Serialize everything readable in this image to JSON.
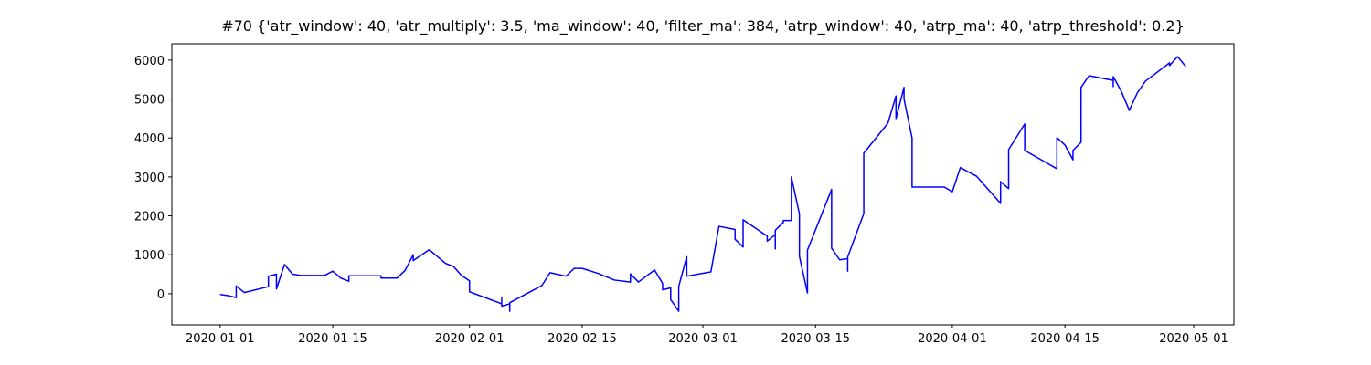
{
  "chart_data": {
    "type": "line",
    "title": "#70 {'atr_window': 40, 'atr_multiply': 3.5, 'ma_window': 40, 'filter_ma': 384, 'atrp_window': 40, 'atrp_ma': 40, 'atrp_threshold': 0.2}",
    "color": "#0000ff",
    "x": [
      "2020-01-01",
      "2020-01-02",
      "2020-01-03",
      "2020-01-03",
      "2020-01-04",
      "2020-01-07",
      "2020-01-07",
      "2020-01-08",
      "2020-01-08",
      "2020-01-09",
      "2020-01-10",
      "2020-01-11",
      "2020-01-14",
      "2020-01-15",
      "2020-01-16",
      "2020-01-17",
      "2020-01-17",
      "2020-01-21",
      "2020-01-21",
      "2020-01-23",
      "2020-01-24",
      "2020-01-25",
      "2020-01-25",
      "2020-01-27",
      "2020-01-29",
      "2020-01-30",
      "2020-01-31",
      "2020-02-01",
      "2020-02-01",
      "2020-02-05",
      "2020-02-05",
      "2020-02-05",
      "2020-02-06",
      "2020-02-06",
      "2020-02-06",
      "2020-02-10",
      "2020-02-11",
      "2020-02-13",
      "2020-02-14",
      "2020-02-15",
      "2020-02-17",
      "2020-02-19",
      "2020-02-21",
      "2020-02-21",
      "2020-02-22",
      "2020-02-24",
      "2020-02-25",
      "2020-02-25",
      "2020-02-26",
      "2020-02-26",
      "2020-02-27",
      "2020-02-27",
      "2020-02-27",
      "2020-02-28",
      "2020-02-28",
      "2020-03-02",
      "2020-03-03",
      "2020-03-05",
      "2020-03-05",
      "2020-03-06",
      "2020-03-06",
      "2020-03-09",
      "2020-03-09",
      "2020-03-10",
      "2020-03-10",
      "2020-03-10",
      "2020-03-11",
      "2020-03-11",
      "2020-03-12",
      "2020-03-12",
      "2020-03-13",
      "2020-03-13",
      "2020-03-14",
      "2020-03-14",
      "2020-03-17",
      "2020-03-17",
      "2020-03-18",
      "2020-03-19",
      "2020-03-19",
      "2020-03-19",
      "2020-03-21",
      "2020-03-21",
      "2020-03-24",
      "2020-03-25",
      "2020-03-25",
      "2020-03-26",
      "2020-03-26",
      "2020-03-27",
      "2020-03-27",
      "2020-03-31",
      "2020-04-01",
      "2020-04-02",
      "2020-04-04",
      "2020-04-07",
      "2020-04-07",
      "2020-04-08",
      "2020-04-08",
      "2020-04-08",
      "2020-04-10",
      "2020-04-10",
      "2020-04-14",
      "2020-04-14",
      "2020-04-14",
      "2020-04-15",
      "2020-04-16",
      "2020-04-16",
      "2020-04-17",
      "2020-04-17",
      "2020-04-17",
      "2020-04-18",
      "2020-04-21",
      "2020-04-21",
      "2020-04-21",
      "2020-04-22",
      "2020-04-23",
      "2020-04-24",
      "2020-04-25",
      "2020-04-28",
      "2020-04-28",
      "2020-04-29",
      "2020-04-30"
    ],
    "values": [
      -20,
      -50,
      -100,
      200,
      30,
      180,
      450,
      500,
      120,
      750,
      500,
      470,
      470,
      580,
      400,
      320,
      460,
      460,
      400,
      400,
      600,
      1000,
      850,
      1130,
      780,
      700,
      470,
      330,
      50,
      -260,
      -100,
      -320,
      -260,
      -450,
      -230,
      210,
      540,
      450,
      650,
      650,
      520,
      350,
      300,
      510,
      300,
      610,
      260,
      100,
      150,
      -150,
      -450,
      70,
      190,
      950,
      450,
      560,
      1730,
      1650,
      1400,
      1200,
      1900,
      1480,
      1350,
      1520,
      1150,
      1630,
      1830,
      1880,
      1880,
      3000,
      2050,
      960,
      20,
      1120,
      2680,
      1170,
      870,
      900,
      580,
      940,
      2060,
      3610,
      4380,
      5080,
      4500,
      5300,
      5000,
      4000,
      2740,
      2740,
      2620,
      3240,
      3020,
      2320,
      2880,
      2700,
      3180,
      3700,
      4360,
      3680,
      3210,
      3420,
      4010,
      3820,
      3440,
      3680,
      3890,
      4450,
      5300,
      5600,
      5480,
      5320,
      5580,
      5200,
      4710,
      5160,
      5460,
      5930,
      5860,
      6090,
      5840
    ],
    "xlim": [
      "2019-12-26",
      "2020-05-06"
    ],
    "xticks": [
      "2020-01-01",
      "2020-01-15",
      "2020-02-01",
      "2020-02-15",
      "2020-03-01",
      "2020-03-15",
      "2020-04-01",
      "2020-04-15",
      "2020-05-01"
    ],
    "ylim": [
      -800,
      6420
    ],
    "yticks": [
      0,
      1000,
      2000,
      3000,
      4000,
      5000,
      6000
    ]
  }
}
